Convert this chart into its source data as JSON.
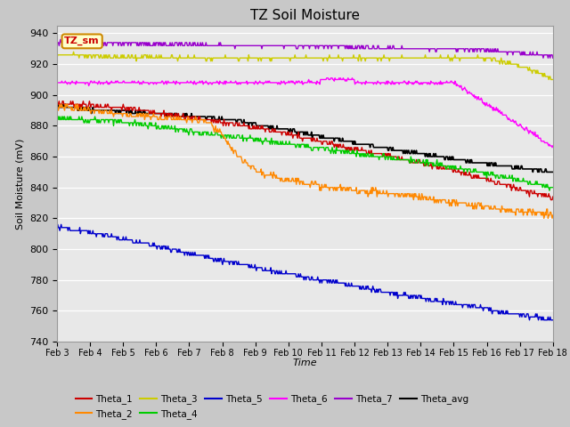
{
  "title": "TZ Soil Moisture",
  "xlabel": "Time",
  "ylabel": "Soil Moisture (mV)",
  "ylim": [
    740,
    945
  ],
  "yticks": [
    740,
    760,
    780,
    800,
    820,
    840,
    860,
    880,
    900,
    920,
    940
  ],
  "fig_bg_color": "#c8c8c8",
  "plot_bg_color": "#e8e8e8",
  "legend_label": "TZ_sm",
  "x_labels": [
    "Feb 3",
    "Feb 4",
    "Feb 5",
    "Feb 6",
    "Feb 7",
    "Feb 8",
    "Feb 9",
    "Feb 10",
    "Feb 11",
    "Feb 12",
    "Feb 13",
    "Feb 14",
    "Feb 15",
    "Feb 16",
    "Feb 17",
    "Feb 18"
  ],
  "legend_rows": [
    [
      "Theta_1",
      "#cc0000",
      "Theta_2",
      "#ff8800",
      "Theta_3",
      "#cccc00",
      "Theta_4",
      "#00cc00",
      "Theta_5",
      "#0000cc",
      "Theta_6",
      "#ff00ff"
    ],
    [
      "Theta_7",
      "#9900cc",
      "Theta_avg",
      "#000000"
    ]
  ]
}
